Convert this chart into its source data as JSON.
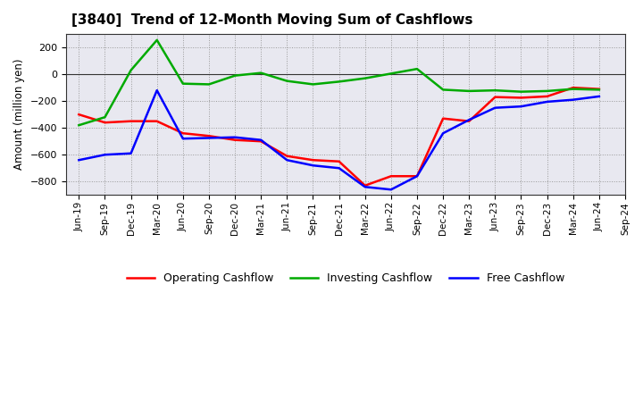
{
  "title": "[3840]  Trend of 12-Month Moving Sum of Cashflows",
  "ylabel": "Amount (million yen)",
  "x_labels": [
    "Jun-19",
    "Sep-19",
    "Dec-19",
    "Mar-20",
    "Jun-20",
    "Sep-20",
    "Dec-20",
    "Mar-21",
    "Jun-21",
    "Sep-21",
    "Dec-21",
    "Mar-22",
    "Jun-22",
    "Sep-22",
    "Dec-22",
    "Mar-23",
    "Jun-23",
    "Sep-23",
    "Dec-23",
    "Mar-24",
    "Jun-24",
    "Sep-24"
  ],
  "operating": [
    -300,
    -360,
    -350,
    -350,
    -440,
    -460,
    -490,
    -500,
    -610,
    -640,
    -650,
    -830,
    -760,
    -760,
    -330,
    -350,
    -170,
    -175,
    -165,
    -100,
    -110,
    null
  ],
  "investing": [
    -380,
    -320,
    30,
    255,
    -70,
    -75,
    -10,
    10,
    -50,
    -75,
    -55,
    -30,
    5,
    40,
    -115,
    -125,
    -120,
    -130,
    -125,
    -110,
    -115,
    null
  ],
  "free": [
    -640,
    -600,
    -590,
    -120,
    -480,
    -475,
    -470,
    -490,
    -640,
    -680,
    -700,
    -840,
    -860,
    -760,
    -440,
    -340,
    -250,
    -240,
    -205,
    -190,
    -165,
    null
  ],
  "ylim": [
    -900,
    300
  ],
  "yticks": [
    -800,
    -600,
    -400,
    -200,
    0,
    200
  ],
  "operating_color": "#ff0000",
  "investing_color": "#00aa00",
  "free_color": "#0000ff",
  "background_color": "#ffffff",
  "plot_bg_color": "#e8e8f0",
  "grid_color": "#999999"
}
